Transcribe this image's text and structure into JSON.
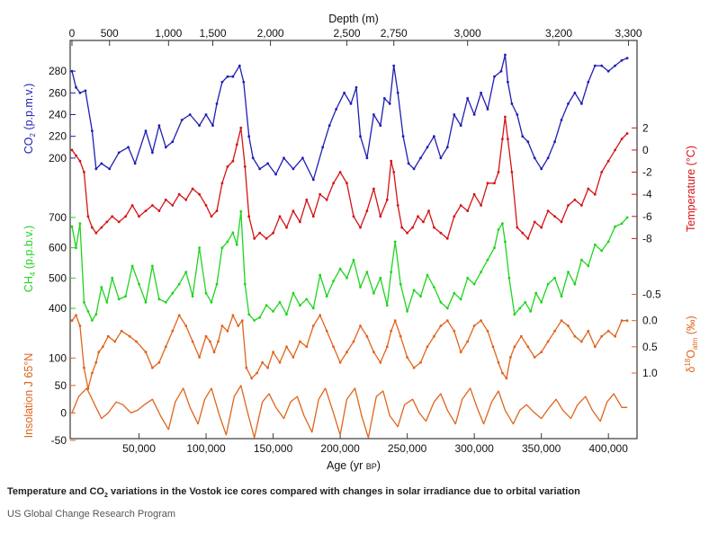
{
  "caption": {
    "pre": "Temperature and CO",
    "sub": "2",
    "post": " variations in the Vostok ice cores compared with changes in solar irradiance due to orbital variation"
  },
  "source": "US Global Change Research Program",
  "chart_data": {
    "type": "line",
    "x_axis": {
      "label_main": "Age (yr ",
      "label_small": "BP",
      "label_end": ")",
      "range": [
        0,
        420000
      ],
      "ticks": [
        50000,
        100000,
        150000,
        200000,
        250000,
        300000,
        350000,
        400000
      ],
      "tick_labels": [
        "50,000",
        "100,000",
        "150,000",
        "200,000",
        "250,000",
        "300,000",
        "350,000",
        "400,000"
      ]
    },
    "depth_axis": {
      "label": "Depth (m)",
      "ticks": [
        {
          "label": "0",
          "age": 0
        },
        {
          "label": "500",
          "age": 28000
        },
        {
          "label": "1,000",
          "age": 72000
        },
        {
          "label": "1,500",
          "age": 105000
        },
        {
          "label": "2,000",
          "age": 148000
        },
        {
          "label": "2,500",
          "age": 205000
        },
        {
          "label": "2,750",
          "age": 240000
        },
        {
          "label": "3,000",
          "age": 295000
        },
        {
          "label": "3,200",
          "age": 363000
        },
        {
          "label": "3,300",
          "age": 415000
        }
      ]
    },
    "series": [
      {
        "key": "co2",
        "title_pre": "CO",
        "title_sub": "2",
        "title_post": " (p.p.m.v.)",
        "color": "#1f1fb4",
        "axis_side": "left",
        "axis_range": [
          180,
          300
        ],
        "ticks": [
          200,
          220,
          240,
          260,
          280
        ],
        "x": [
          0,
          3000,
          6000,
          10000,
          15000,
          18000,
          22000,
          28000,
          35000,
          42000,
          47000,
          55000,
          60000,
          65000,
          70000,
          75000,
          82000,
          88000,
          95000,
          100000,
          105000,
          108000,
          112000,
          116000,
          120000,
          125000,
          128000,
          132000,
          135000,
          140000,
          146000,
          152000,
          158000,
          165000,
          172000,
          180000,
          187000,
          192000,
          197000,
          203000,
          208000,
          212000,
          215000,
          220000,
          225000,
          230000,
          233000,
          237000,
          240000,
          243000,
          247000,
          251000,
          255000,
          260000,
          265000,
          270000,
          275000,
          280000,
          285000,
          290000,
          295000,
          300000,
          305000,
          310000,
          315000,
          320000,
          323000,
          325000,
          328000,
          332000,
          336000,
          340000,
          345000,
          350000,
          355000,
          360000,
          365000,
          370000,
          375000,
          380000,
          385000,
          390000,
          395000,
          400000,
          405000,
          410000,
          414000
        ],
        "y": [
          280,
          265,
          260,
          262,
          225,
          190,
          195,
          190,
          205,
          210,
          195,
          225,
          205,
          230,
          210,
          215,
          235,
          240,
          230,
          240,
          230,
          250,
          270,
          275,
          275,
          285,
          270,
          220,
          200,
          190,
          195,
          185,
          200,
          190,
          200,
          180,
          210,
          230,
          245,
          260,
          250,
          265,
          220,
          200,
          240,
          230,
          255,
          250,
          285,
          260,
          220,
          195,
          190,
          200,
          210,
          220,
          200,
          210,
          240,
          230,
          255,
          240,
          260,
          245,
          275,
          280,
          295,
          270,
          250,
          240,
          220,
          215,
          200,
          190,
          200,
          215,
          235,
          250,
          260,
          250,
          270,
          285,
          285,
          280,
          285,
          290,
          292
        ]
      },
      {
        "key": "temperature",
        "title_pre": "Temperature (°C)",
        "color": "#d41414",
        "axis_side": "right",
        "axis_range": [
          -10,
          3
        ],
        "ticks": [
          2,
          0,
          -2,
          -4,
          -6,
          -8
        ],
        "x": [
          0,
          3000,
          6000,
          9000,
          12000,
          15000,
          18000,
          22000,
          26000,
          30000,
          35000,
          40000,
          45000,
          50000,
          55000,
          60000,
          65000,
          70000,
          75000,
          80000,
          85000,
          90000,
          95000,
          100000,
          104000,
          108000,
          112000,
          116000,
          120000,
          123000,
          126000,
          129000,
          132000,
          136000,
          140000,
          145000,
          150000,
          155000,
          160000,
          165000,
          170000,
          175000,
          180000,
          185000,
          190000,
          195000,
          200000,
          205000,
          210000,
          215000,
          220000,
          225000,
          230000,
          235000,
          238000,
          240000,
          243000,
          246000,
          250000,
          254000,
          258000,
          262000,
          266000,
          270000,
          275000,
          280000,
          285000,
          290000,
          295000,
          300000,
          305000,
          310000,
          315000,
          318000,
          321000,
          323000,
          325000,
          328000,
          332000,
          336000,
          340000,
          345000,
          350000,
          355000,
          360000,
          365000,
          370000,
          375000,
          380000,
          385000,
          390000,
          395000,
          400000,
          405000,
          410000,
          414000
        ],
        "y": [
          0,
          -0.5,
          -1,
          -2,
          -6,
          -7,
          -7.5,
          -7,
          -6.5,
          -6,
          -6.5,
          -6,
          -5,
          -6,
          -5.5,
          -5,
          -5.5,
          -4.5,
          -5,
          -4,
          -4.5,
          -3.5,
          -4,
          -5,
          -6,
          -5.5,
          -3,
          -1.5,
          -1,
          0.5,
          2,
          -1.5,
          -6,
          -8,
          -7.5,
          -8,
          -7.5,
          -6,
          -7,
          -5.5,
          -6.5,
          -4.5,
          -6,
          -4,
          -4.5,
          -3,
          -2,
          -3,
          -6,
          -7,
          -5.5,
          -3.5,
          -6,
          -4.5,
          -1,
          -2,
          -5,
          -7,
          -7.5,
          -7,
          -6,
          -6.5,
          -5.5,
          -7,
          -7.5,
          -8,
          -6,
          -5,
          -5.5,
          -4,
          -5,
          -3,
          -3,
          -2,
          1,
          3,
          1,
          -2,
          -7,
          -7.5,
          -8,
          -6.5,
          -7,
          -5.5,
          -6,
          -6.5,
          -5,
          -4.5,
          -5,
          -3.5,
          -4,
          -2,
          -1,
          0,
          1,
          1.5
        ]
      },
      {
        "key": "ch4",
        "title_pre": "CH",
        "title_sub": "4",
        "title_post": " (p.p.b.v.)",
        "color": "#1fd41f",
        "axis_side": "left",
        "axis_range": [
          320,
          780
        ],
        "ticks": [
          400,
          500,
          600,
          700
        ],
        "x": [
          0,
          3000,
          6000,
          9000,
          12000,
          15000,
          18000,
          22000,
          26000,
          30000,
          35000,
          40000,
          45000,
          50000,
          55000,
          60000,
          65000,
          70000,
          75000,
          80000,
          85000,
          90000,
          95000,
          100000,
          104000,
          108000,
          112000,
          116000,
          120000,
          123000,
          126000,
          129000,
          132000,
          136000,
          140000,
          145000,
          150000,
          155000,
          160000,
          165000,
          170000,
          175000,
          180000,
          185000,
          190000,
          195000,
          200000,
          205000,
          210000,
          215000,
          220000,
          225000,
          230000,
          235000,
          238000,
          241000,
          245000,
          250000,
          255000,
          260000,
          265000,
          270000,
          275000,
          280000,
          285000,
          290000,
          295000,
          300000,
          305000,
          310000,
          315000,
          318000,
          321000,
          323000,
          326000,
          330000,
          334000,
          338000,
          342000,
          346000,
          350000,
          355000,
          360000,
          365000,
          370000,
          375000,
          380000,
          385000,
          390000,
          395000,
          400000,
          405000,
          410000,
          414000
        ],
        "y": [
          670,
          600,
          680,
          420,
          390,
          360,
          380,
          470,
          420,
          500,
          430,
          440,
          540,
          480,
          420,
          540,
          430,
          420,
          450,
          480,
          520,
          440,
          600,
          450,
          420,
          480,
          600,
          620,
          650,
          610,
          720,
          480,
          380,
          360,
          370,
          410,
          390,
          420,
          380,
          450,
          410,
          430,
          400,
          510,
          440,
          490,
          530,
          500,
          560,
          470,
          520,
          450,
          500,
          410,
          520,
          620,
          480,
          390,
          460,
          440,
          510,
          470,
          420,
          400,
          450,
          430,
          500,
          480,
          520,
          560,
          600,
          660,
          680,
          620,
          500,
          380,
          400,
          420,
          390,
          450,
          420,
          480,
          500,
          440,
          520,
          480,
          560,
          540,
          610,
          590,
          620,
          670,
          680,
          700
        ]
      },
      {
        "key": "d18o",
        "title_pre": "δ",
        "title_sup": "18",
        "title_post": "O",
        "title_sub": "atm",
        "title_end": " (‰)",
        "color": "#e0641c",
        "axis_side": "right",
        "axis_range": [
          -0.8,
          1.6
        ],
        "reversed": true,
        "ticks": [
          -0.5,
          0,
          0.5,
          1
        ],
        "tick_labels": [
          "-0.5",
          "0.0",
          "0.5",
          "1.0"
        ],
        "x": [
          0,
          3000,
          6000,
          9000,
          12000,
          15000,
          18000,
          20000,
          23000,
          27000,
          32000,
          37000,
          43000,
          48000,
          55000,
          60000,
          65000,
          70000,
          75000,
          80000,
          85000,
          90000,
          95000,
          100000,
          103000,
          106000,
          109000,
          112000,
          116000,
          120000,
          124000,
          127000,
          130000,
          134000,
          138000,
          142000,
          146000,
          150000,
          155000,
          160000,
          165000,
          170000,
          175000,
          180000,
          185000,
          190000,
          195000,
          200000,
          205000,
          210000,
          215000,
          220000,
          225000,
          230000,
          235000,
          238000,
          241000,
          245000,
          250000,
          255000,
          260000,
          265000,
          270000,
          275000,
          280000,
          285000,
          290000,
          295000,
          300000,
          305000,
          310000,
          314000,
          318000,
          321000,
          324000,
          327000,
          330000,
          335000,
          340000,
          345000,
          350000,
          355000,
          360000,
          365000,
          370000,
          375000,
          380000,
          385000,
          390000,
          395000,
          400000,
          405000,
          410000,
          414000
        ],
        "y": [
          0,
          -0.1,
          0.1,
          0.9,
          1.3,
          1.0,
          0.8,
          0.6,
          0.5,
          0.3,
          0.4,
          0.2,
          0.3,
          0.4,
          0.6,
          0.9,
          0.8,
          0.5,
          0.2,
          -0.1,
          0.1,
          0.4,
          0.7,
          0.3,
          0.4,
          0.6,
          0.4,
          0.1,
          0.2,
          -0.1,
          0.1,
          0.0,
          0.9,
          1.1,
          1.0,
          0.8,
          0.9,
          0.6,
          0.8,
          0.5,
          0.7,
          0.4,
          0.5,
          0.1,
          -0.1,
          0.2,
          0.5,
          0.8,
          0.6,
          0.4,
          0.1,
          0.3,
          0.6,
          0.8,
          0.5,
          0.2,
          0.0,
          0.3,
          0.7,
          0.9,
          0.8,
          0.5,
          0.3,
          0.1,
          0.0,
          0.2,
          0.6,
          0.4,
          0.1,
          0.0,
          0.2,
          0.5,
          0.8,
          1.0,
          1.1,
          0.7,
          0.5,
          0.3,
          0.5,
          0.7,
          0.6,
          0.4,
          0.2,
          0.0,
          0.1,
          0.3,
          0.4,
          0.2,
          0.5,
          0.3,
          0.2,
          0.3,
          0.0,
          0.0
        ]
      },
      {
        "key": "insolation",
        "title_pre": "Insolation J 65°N",
        "color": "#e0641c",
        "axis_side": "left",
        "axis_range": [
          -50,
          130
        ],
        "ticks": [
          -50,
          0,
          50,
          100
        ],
        "tick_labels": [
          "-50",
          "0",
          "50",
          "100"
        ],
        "x": [
          0,
          5000,
          11000,
          16000,
          22000,
          27000,
          33000,
          38000,
          44000,
          49000,
          54000,
          60000,
          66000,
          72000,
          77000,
          83000,
          88000,
          94000,
          99000,
          104000,
          110000,
          115000,
          121000,
          126000,
          131000,
          136000,
          142000,
          147000,
          152000,
          158000,
          163000,
          168000,
          173000,
          179000,
          184000,
          189000,
          195000,
          200000,
          205000,
          211000,
          216000,
          221000,
          227000,
          232000,
          237000,
          243000,
          248000,
          254000,
          259000,
          264000,
          270000,
          275000,
          280000,
          286000,
          291000,
          297000,
          302000,
          307000,
          313000,
          318000,
          323000,
          329000,
          334000,
          339000,
          345000,
          350000,
          356000,
          361000,
          366000,
          372000,
          377000,
          383000,
          388000,
          394000,
          399000,
          404000,
          410000,
          414000
        ],
        "y": [
          0,
          30,
          45,
          20,
          -10,
          0,
          20,
          15,
          0,
          5,
          15,
          25,
          -5,
          -30,
          20,
          45,
          10,
          -20,
          25,
          45,
          -5,
          -40,
          30,
          50,
          0,
          -45,
          20,
          35,
          10,
          -10,
          20,
          30,
          -5,
          -35,
          25,
          45,
          0,
          -40,
          25,
          45,
          -5,
          -45,
          30,
          40,
          -5,
          -25,
          15,
          25,
          0,
          -15,
          20,
          35,
          5,
          -20,
          25,
          45,
          10,
          -20,
          20,
          40,
          5,
          -20,
          5,
          15,
          0,
          -10,
          10,
          25,
          5,
          -10,
          15,
          30,
          5,
          -15,
          20,
          35,
          10,
          10
        ]
      }
    ],
    "title": ""
  }
}
